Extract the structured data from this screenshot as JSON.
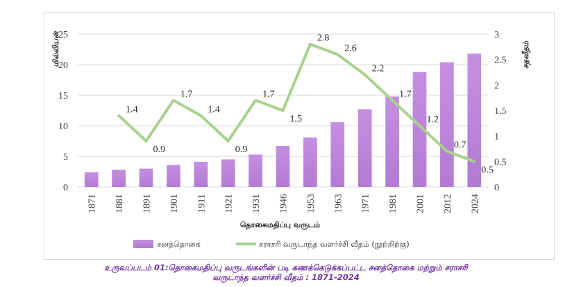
{
  "chart_data": {
    "type": "bar+line",
    "categories": [
      "1871",
      "1881",
      "1891",
      "1901",
      "1911",
      "1921",
      "1931",
      "1946",
      "1953",
      "1963",
      "1971",
      "1981",
      "2001",
      "2012",
      "2024"
    ],
    "series": [
      {
        "name": "சனத்தொகை",
        "type": "bar",
        "axis": "left",
        "color": "#b27bd3",
        "values": [
          2.4,
          2.8,
          3.0,
          3.6,
          4.1,
          4.5,
          5.3,
          6.7,
          8.1,
          10.6,
          12.7,
          14.8,
          18.8,
          20.4,
          21.8
        ]
      },
      {
        "name": "சராசரி வருடாந்த வளர்ச்சி வீதம் (நூற்றிற்கு)",
        "type": "line",
        "axis": "right",
        "color": "#a9d18e",
        "values": [
          null,
          1.4,
          0.9,
          1.7,
          1.4,
          0.9,
          1.7,
          1.5,
          2.8,
          2.6,
          2.2,
          1.7,
          1.2,
          0.7,
          0.5
        ],
        "labels": [
          "",
          "1.4",
          "0.9",
          "1.7",
          "1.4",
          "0.9",
          "1.7",
          "1.5",
          "2.8",
          "2.6",
          "2.2",
          "1.7",
          "1.2",
          "0.7",
          "0.5"
        ]
      }
    ],
    "xlabel": "தொகைமதிப்பு வருடம்",
    "ylabel_left": "மில்லியன்",
    "ylabel_right": "சதவீதம்",
    "ylim_left": [
      0,
      25
    ],
    "yticks_left": [
      "0",
      "5",
      "10",
      "15",
      "20",
      "25"
    ],
    "ylim_right": [
      0,
      3
    ],
    "yticks_right": [
      "0",
      "0.5",
      "1",
      "1.5",
      "2",
      "2.5",
      "3"
    ],
    "grid": "horizontal",
    "legend_position": "bottom"
  },
  "caption": {
    "line1": "உருவப்படம் 01:தொகைமதிப்பு வருடங்களின் படி கணக்கெடுக்கப்பட்ட சனத்தொகை மற்றும் சராசரி",
    "line2": "வருடாந்த வளர்ச்சி வீதம் : 1871-2024"
  }
}
